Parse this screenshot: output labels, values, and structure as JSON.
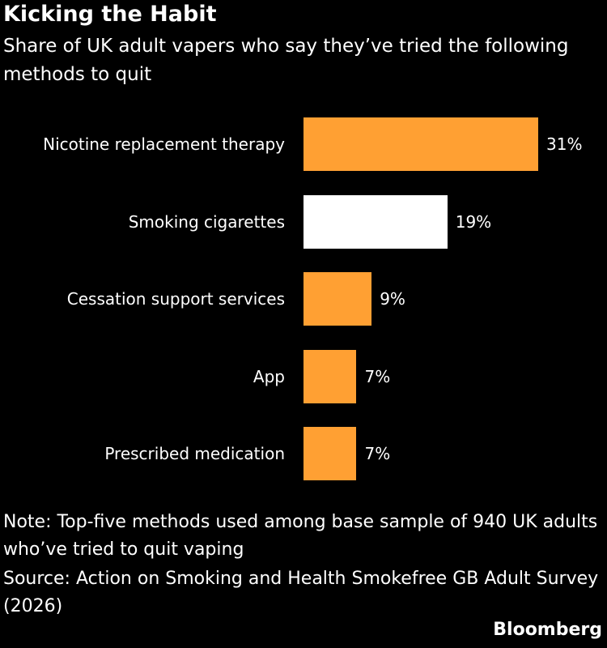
{
  "chart_data": {
    "type": "bar",
    "orientation": "horizontal",
    "title": "Kicking the Habit",
    "subtitle": "Share of UK adult vapers who say they’ve tried the following methods to quit",
    "categories": [
      "Nicotine replacement therapy",
      "Smoking cigarettes",
      "Cessation support services",
      "App",
      "Prescribed medication"
    ],
    "values": [
      31,
      19,
      9,
      7,
      7
    ],
    "value_labels": [
      "31%",
      "19%",
      "9%",
      "7%",
      "7%"
    ],
    "colors": [
      "#ffa033",
      "#ffffff",
      "#ffa033",
      "#ffa033",
      "#ffa033"
    ],
    "note": "Note: Top-five methods used among base sample of 940 UK adults who’ve tried to quit vaping",
    "source": "Source: Action on Smoking and Health Smokefree GB Adult Survey (2026)",
    "credit": "Bloomberg"
  }
}
